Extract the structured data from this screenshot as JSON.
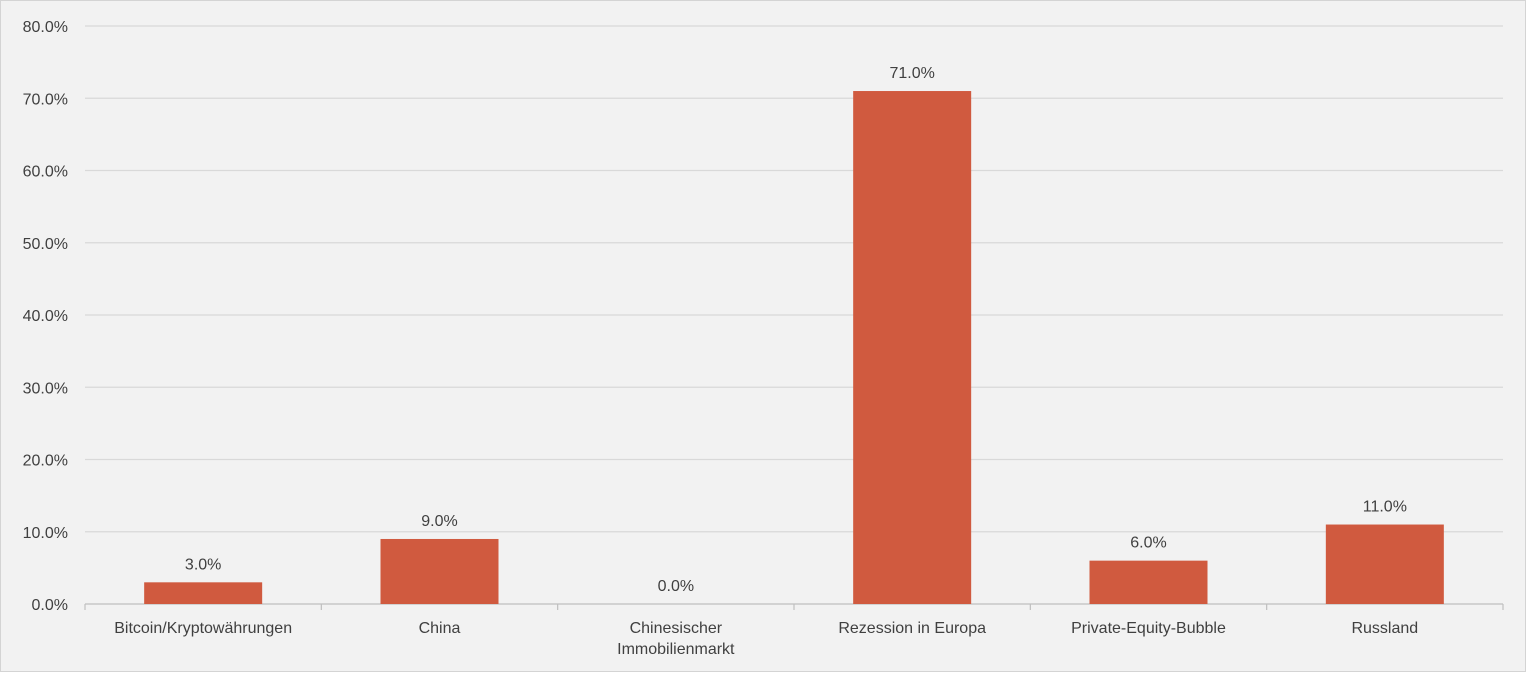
{
  "chart_data": {
    "type": "bar",
    "title": "",
    "xlabel": "",
    "ylabel": "",
    "categories": [
      [
        "Bitcoin/Kryptowährungen"
      ],
      [
        "China"
      ],
      [
        "Chinesischer",
        "Immobilienmarkt"
      ],
      [
        "Rezession in Europa"
      ],
      [
        "Private-Equity-Bubble"
      ],
      [
        "Russland"
      ]
    ],
    "values": [
      3.0,
      9.0,
      0.0,
      71.0,
      6.0,
      11.0
    ],
    "data_labels": [
      "3.0%",
      "9.0%",
      "0.0%",
      "71.0%",
      "6.0%",
      "11.0%"
    ],
    "ylim": [
      0,
      80
    ],
    "yticks": [
      0,
      10,
      20,
      30,
      40,
      50,
      60,
      70,
      80
    ],
    "ytick_labels": [
      "0.0%",
      "10.0%",
      "20.0%",
      "30.0%",
      "40.0%",
      "50.0%",
      "60.0%",
      "70.0%",
      "80.0%"
    ],
    "grid": true,
    "legend": "none",
    "colors": {
      "bar": "#d05a3f",
      "background": "#f2f2f2",
      "gridline": "#d9d9d9",
      "axis": "#bfbfbf",
      "text": "#404040"
    }
  }
}
